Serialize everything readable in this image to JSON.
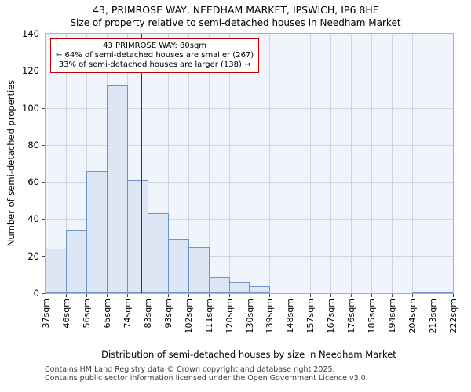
{
  "annotation": {
    "line1": "43 PRIMROSE WAY: 80sqm",
    "line2": "← 64% of semi-detached houses are smaller (267)",
    "line3": "33% of semi-detached houses are larger (138) →"
  },
  "footer": {
    "line1": "Contains HM Land Registry data © Crown copyright and database right 2025.",
    "line2": "Contains public sector information licensed under the Open Government Licence v3.0."
  },
  "chart_data": {
    "type": "bar",
    "title": "43, PRIMROSE WAY, NEEDHAM MARKET, IPSWICH, IP6 8HF",
    "subtitle": "Size of property relative to semi-detached houses in Needham Market",
    "xlabel": "Distribution of semi-detached houses by size in Needham Market",
    "ylabel": "Number of semi-detached properties",
    "ylim": [
      0,
      140
    ],
    "yticks": [
      0,
      20,
      40,
      60,
      80,
      100,
      120,
      140
    ],
    "bin_edges": [
      37,
      46,
      56,
      65,
      74,
      83,
      93,
      102,
      111,
      120,
      130,
      139,
      148,
      157,
      167,
      176,
      185,
      194,
      204,
      213,
      222
    ],
    "tick_labels": [
      "37sqm",
      "46sqm",
      "56sqm",
      "65sqm",
      "74sqm",
      "83sqm",
      "93sqm",
      "102sqm",
      "111sqm",
      "120sqm",
      "130sqm",
      "139sqm",
      "148sqm",
      "157sqm",
      "167sqm",
      "176sqm",
      "185sqm",
      "194sqm",
      "204sqm",
      "213sqm",
      "222sqm"
    ],
    "values": [
      24,
      34,
      66,
      112,
      61,
      43,
      29,
      25,
      9,
      6,
      4,
      0,
      0,
      0,
      0,
      0,
      0,
      0,
      1,
      1
    ],
    "grid": true,
    "legend": false,
    "marker": {
      "value": 80,
      "color": "#b30000"
    },
    "colors": {
      "bar_fill": "#dce6f5",
      "bar_border": "#6e93c8",
      "plot_bg": "#f0f4fb",
      "grid": "#cdd5e3",
      "annotation_border": "#c00000"
    }
  }
}
